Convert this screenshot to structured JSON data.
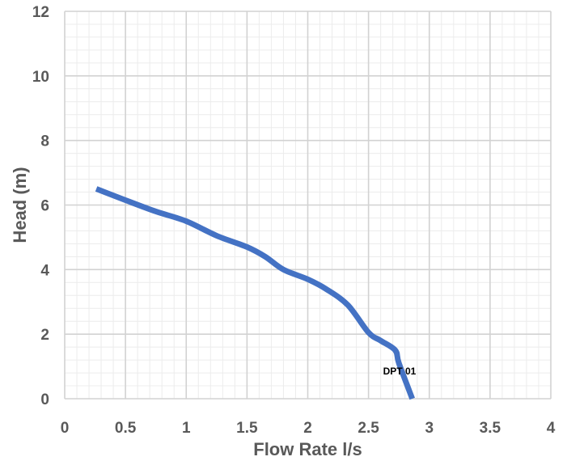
{
  "chart_data": {
    "type": "line",
    "title": "",
    "xlabel": "Flow Rate l/s",
    "ylabel": "Head (m)",
    "xlim": [
      0,
      4
    ],
    "ylim": [
      0,
      12
    ],
    "x_ticks": [
      0,
      0.5,
      1,
      1.5,
      2,
      2.5,
      3,
      3.5,
      4
    ],
    "x_tick_labels": [
      "0",
      "0.5",
      "1",
      "1.5",
      "2",
      "2.5",
      "3",
      "3.5",
      "4"
    ],
    "y_ticks": [
      0,
      2,
      4,
      6,
      8,
      10,
      12
    ],
    "y_tick_labels": [
      "0",
      "2",
      "4",
      "6",
      "8",
      "10",
      "12"
    ],
    "grid": true,
    "minor_grid": true,
    "series": [
      {
        "name": "DPT 01",
        "color": "#4472C4",
        "x": [
          0.26,
          0.5,
          0.75,
          1.0,
          1.25,
          1.5,
          1.65,
          1.8,
          2.0,
          2.15,
          2.33,
          2.5,
          2.6,
          2.72,
          2.75,
          2.86
        ],
        "y": [
          6.5,
          6.15,
          5.8,
          5.5,
          5.05,
          4.7,
          4.4,
          4.0,
          3.7,
          3.4,
          2.9,
          2.05,
          1.8,
          1.5,
          1.1,
          0.0
        ]
      }
    ],
    "annotations": [
      {
        "text": "DPT 01",
        "x": 2.62,
        "y": 0.75
      }
    ]
  }
}
